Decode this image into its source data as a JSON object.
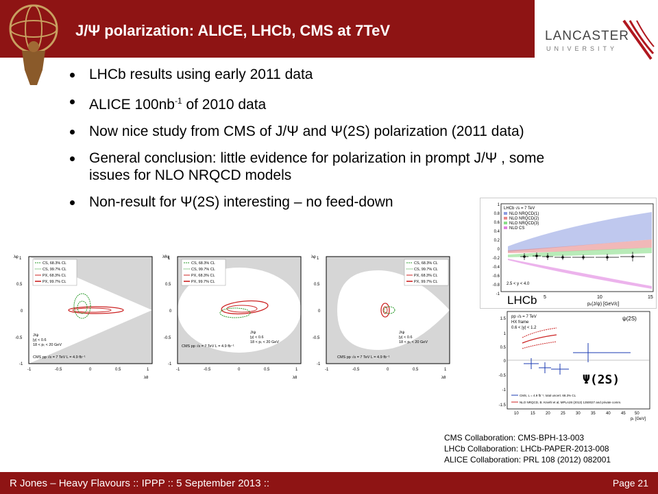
{
  "header": {
    "title": "J/Ψ polarization: ALICE, LHCb, CMS at 7TeV",
    "logo_line1": "LANCASTER",
    "logo_line2": "UNIVERSITY",
    "bar_color": "#8e1414"
  },
  "bullets": [
    {
      "text": "LHCb results using early 2011 data"
    },
    {
      "pre": "ALICE 100nb",
      "sup": "-1",
      "post": " of 2010 data"
    },
    {
      "text": "Now nice study from CMS of J/Ψ  and  Ψ(2S) polarization (2011 data)"
    },
    {
      "text": "General conclusion: little evidence for polarization in prompt J/Ψ , some issues for NLO NRQCD models"
    },
    {
      "text": "Non-result for Ψ(2S) interesting – no feed-down"
    }
  ],
  "cms_plots": {
    "legend": [
      "CS, 68.3% CL",
      "CS, 99.7% CL",
      "PX, 68.3% CL",
      "PX, 99.7% CL"
    ],
    "x_ticks": [
      "-1",
      "-0.5",
      "0",
      "0.5",
      "1"
    ],
    "y_ticks": [
      "1",
      "0.5",
      "0",
      "-0.5",
      "-1"
    ],
    "cms_label": "CMS  pp   √s = 7 TeV   L = 4.9 fb⁻¹",
    "jpsi_label": "J/ψ",
    "rapidity": "|y| < 0.6",
    "pt_range": "18 < pₜ < 20 GeV",
    "x_axis": "λθ",
    "y_axes": [
      "λφ",
      "λθφ",
      "λφ"
    ]
  },
  "lhcb_plot": {
    "annotation": "LHCb √s = 7 TeV",
    "legend": [
      "NLO NRQCD(1)",
      "NLO NRQCD(2)",
      "NLO NRQCD(3)",
      "NLO CS"
    ],
    "rapidity": "2.5 < y < 4.0",
    "x_axis": "pₜ(J/ψ) [GeV/c]",
    "y_ticks": [
      "1",
      "0.8",
      "0.6",
      "0.4",
      "0.2",
      "0",
      "-0.2",
      "-0.4",
      "-0.6",
      "-0.8",
      "-1"
    ],
    "x_ticks": [
      "5",
      "10",
      "15"
    ],
    "label": "LHCb"
  },
  "psi2s_plot": {
    "header": "pp √s = 7 TeV",
    "frame": "HX frame",
    "rapidity": "0.6 < |y| < 1.2",
    "state": "ψ(2S)",
    "big_label": "Ψ(2S)",
    "y_ticks": [
      "1.5",
      "1",
      "0.5",
      "0",
      "-0.5",
      "-1",
      "-1.5"
    ],
    "x_ticks": [
      "10",
      "15",
      "20",
      "25",
      "30",
      "35",
      "40",
      "45",
      "50"
    ],
    "x_axis": "pₜ [GeV]",
    "legend": [
      "CMS, L = 4.9 fb⁻¹, total uncert. 68.3% CL",
      "NLO NRQCD, B. Kniehl et al, MPLA28 (2013) 1350027 and private comm."
    ]
  },
  "references": [
    "CMS Collaboration: CMS-BPH-13-003",
    "LHCb Collaboration:  LHCb-PAPER-2013-008",
    "ALICE Collaboration:  PRL 108 (2012) 082001"
  ],
  "footer": {
    "left": "R Jones – Heavy Flavours  ::  IPPP  :: 5 September 2013  ::",
    "right": "Page 21"
  }
}
